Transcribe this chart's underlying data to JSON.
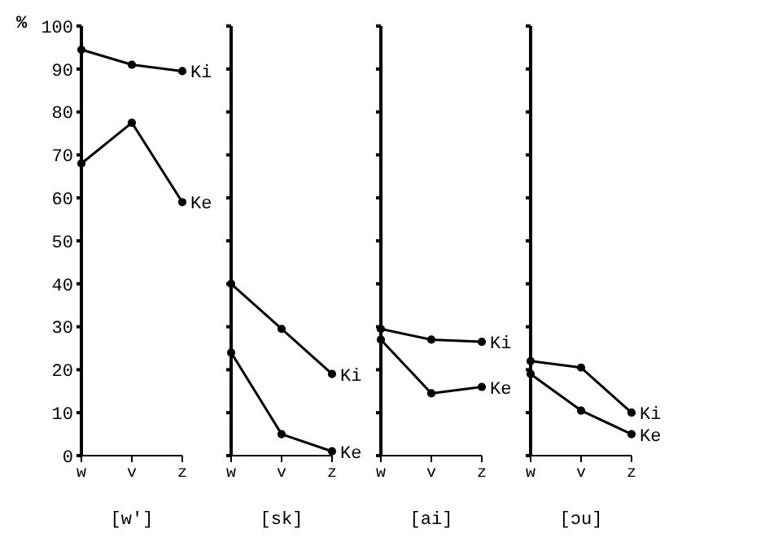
{
  "chart_data": [
    {
      "type": "line",
      "ylabel": "%",
      "xlabel": "[w']",
      "categories": [
        "w",
        "v",
        "z"
      ],
      "ylim": [
        0,
        100
      ],
      "yticks": [
        0,
        10,
        20,
        30,
        40,
        50,
        60,
        70,
        80,
        90,
        100
      ],
      "grid": false,
      "legend": false,
      "marker": "circle",
      "line_style": "solid",
      "series": [
        {
          "name": "Ki",
          "color": "#000000",
          "values": [
            94.5,
            91,
            89.5
          ]
        },
        {
          "name": "Ke",
          "color": "#000000",
          "values": [
            68,
            77.5,
            59
          ]
        }
      ]
    },
    {
      "type": "line",
      "xlabel": "[sk]",
      "categories": [
        "w",
        "v",
        "z"
      ],
      "ylim": [
        0,
        100
      ],
      "yticks": [
        0,
        10,
        20,
        30,
        40,
        50,
        60,
        70,
        80,
        90,
        100
      ],
      "tick_labels": "x",
      "grid": false,
      "legend": false,
      "marker": "circle",
      "line_style": "solid",
      "series": [
        {
          "name": "Ki",
          "color": "#000000",
          "values": [
            40,
            29.5,
            19
          ]
        },
        {
          "name": "Ke",
          "color": "#000000",
          "values": [
            24,
            5,
            1
          ]
        }
      ]
    },
    {
      "type": "line",
      "xlabel": "[ai]",
      "categories": [
        "w",
        "v",
        "z"
      ],
      "ylim": [
        0,
        100
      ],
      "yticks": [
        0,
        10,
        20,
        30,
        40,
        50,
        60,
        70,
        80,
        90,
        100
      ],
      "tick_labels": "x",
      "grid": false,
      "legend": false,
      "marker": "circle",
      "line_style": "solid",
      "series": [
        {
          "name": "Ki",
          "color": "#000000",
          "values": [
            29.5,
            27,
            26.5
          ]
        },
        {
          "name": "Ke",
          "color": "#000000",
          "values": [
            27,
            14.5,
            16
          ]
        }
      ]
    },
    {
      "type": "line",
      "xlabel": "[ɔu]",
      "categories": [
        "w",
        "v",
        "z"
      ],
      "ylim": [
        0,
        100
      ],
      "yticks": [
        0,
        10,
        20,
        30,
        40,
        50,
        60,
        70,
        80,
        90,
        100
      ],
      "tick_labels": "x",
      "grid": false,
      "legend": false,
      "marker": "circle",
      "line_style": "solid",
      "series": [
        {
          "name": "Ki",
          "color": "#000000",
          "values": [
            22,
            20.5,
            10
          ]
        },
        {
          "name": "Ke",
          "color": "#000000",
          "values": [
            19,
            10.5,
            5
          ]
        }
      ]
    }
  ]
}
